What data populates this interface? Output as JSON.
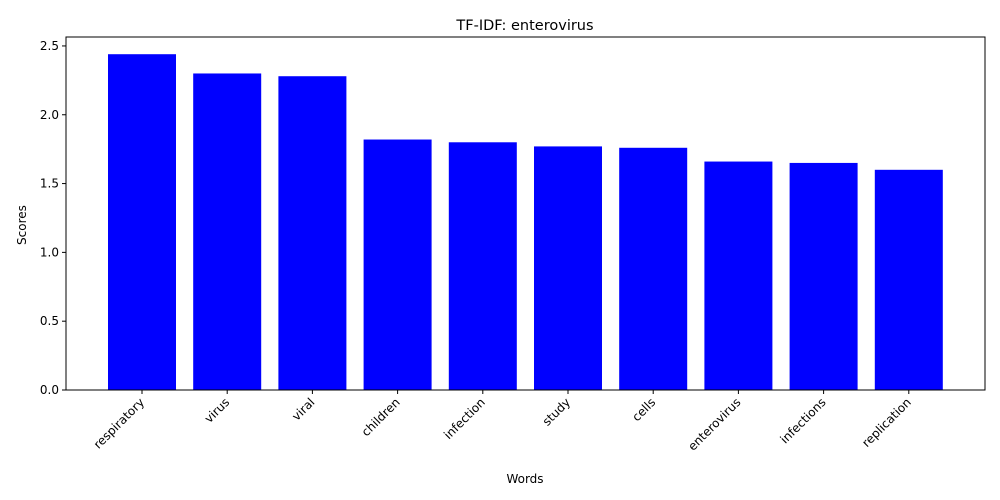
{
  "chart_data": {
    "type": "bar",
    "title": "TF-IDF: enterovirus",
    "xlabel": "Words",
    "ylabel": "Scores",
    "categories": [
      "respiratory",
      "virus",
      "viral",
      "children",
      "infection",
      "study",
      "cells",
      "enterovirus",
      "infections",
      "replication"
    ],
    "values": [
      2.44,
      2.3,
      2.28,
      1.82,
      1.8,
      1.77,
      1.76,
      1.66,
      1.65,
      1.6
    ],
    "ylim": [
      0,
      2.565
    ],
    "yticks": [
      "0.0",
      "0.5",
      "1.0",
      "1.5",
      "2.0",
      "2.5"
    ],
    "bar_color": "#0000ff",
    "grid": false
  }
}
